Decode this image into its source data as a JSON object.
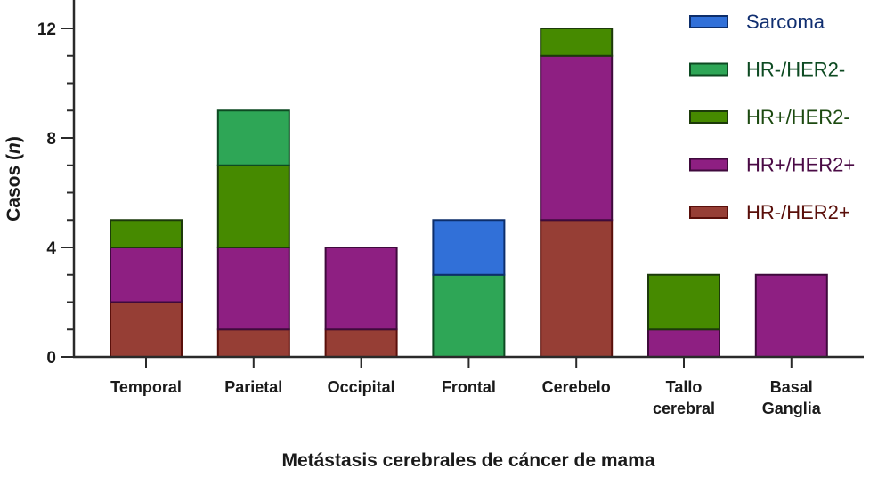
{
  "chart_data": {
    "type": "bar",
    "stacked": true,
    "title": "",
    "xlabel": "Metástasis cerebrales de cáncer de mama",
    "ylabel_main": "Casos (",
    "ylabel_italic": "n",
    "ylabel_end": ")",
    "ylim": [
      0,
      13
    ],
    "yticks_major": [
      0,
      4,
      8,
      12
    ],
    "yticks_minor_step": 1,
    "grid": false,
    "legend_position": "top-right",
    "categories": [
      [
        "Temporal"
      ],
      [
        "Parietal"
      ],
      [
        "Occipital"
      ],
      [
        "Frontal"
      ],
      [
        "Cerebelo"
      ],
      [
        "Tallo",
        "cerebral"
      ],
      [
        "Basal",
        "Ganglia"
      ]
    ],
    "series": [
      {
        "name": "HR-/HER2+",
        "fill": "#963e35",
        "stroke": "#5a0f0a",
        "text_color": "#5a0f0a",
        "values": [
          2,
          1,
          1,
          0,
          5,
          0,
          0
        ]
      },
      {
        "name": "HR+/HER2+",
        "fill": "#8e1f82",
        "stroke": "#3f0a3c",
        "text_color": "#4a0a45",
        "values": [
          2,
          3,
          3,
          0,
          6,
          1,
          3
        ]
      },
      {
        "name": "HR+/HER2-",
        "fill": "#468a00",
        "stroke": "#1c3a0a",
        "text_color": "#1c4a10",
        "values": [
          1,
          3,
          0,
          0,
          1,
          2,
          0
        ]
      },
      {
        "name": "HR-/HER2-",
        "fill": "#2ea656",
        "stroke": "#0d4a22",
        "text_color": "#0d4a22",
        "values": [
          0,
          2,
          0,
          3,
          0,
          0,
          0
        ]
      },
      {
        "name": "Sarcoma",
        "fill": "#3170d8",
        "stroke": "#0d2e6b",
        "text_color": "#102e70",
        "values": [
          0,
          0,
          0,
          2,
          0,
          0,
          0
        ]
      }
    ],
    "legend_order": [
      "Sarcoma",
      "HR-/HER2-",
      "HR+/HER2-",
      "HR+/HER2+",
      "HR-/HER2+"
    ]
  }
}
